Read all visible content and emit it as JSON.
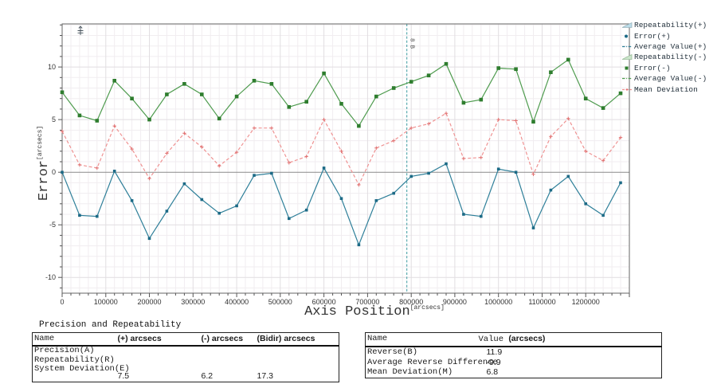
{
  "chart_data": {
    "type": "line",
    "title": "",
    "xlabel": "Axis Position",
    "xlabel_unit": "[arcsecs]",
    "ylabel": "Error",
    "ylabel_unit": "[arcsecs]",
    "xlim": [
      0,
      1300000
    ],
    "ylim": [
      -11.5,
      14.1
    ],
    "grid": true,
    "legend_position": "right",
    "x_tick_values": [
      0,
      100000,
      200000,
      300000,
      400000,
      500000,
      600000,
      700000,
      800000,
      900000,
      1000000,
      1100000,
      1200000
    ],
    "x_tick_labels": [
      "0",
      "100000",
      "200000",
      "300000",
      "400000",
      "500000",
      "600000",
      "700000",
      "800000",
      "900000",
      "1000000",
      "1100000",
      "1200000"
    ],
    "x_minor_step": 20000,
    "y_tick_values": [
      -10,
      -5,
      0,
      5,
      10
    ],
    "y_tick_labels": [
      "-10",
      "-5",
      "0",
      "5",
      "10"
    ],
    "y_minor_step": 1,
    "ref_line": {
      "x": 790000,
      "label": "8B"
    },
    "x": [
      0,
      40000,
      80000,
      120000,
      160000,
      200000,
      240000,
      280000,
      320000,
      360000,
      400000,
      440000,
      480000,
      520000,
      560000,
      600000,
      640000,
      680000,
      720000,
      760000,
      800000,
      840000,
      880000,
      920000,
      960000,
      1000000,
      1040000,
      1080000,
      1120000,
      1160000,
      1200000,
      1240000,
      1280000
    ],
    "series": [
      {
        "name": "Average Value(-)",
        "marker": "square",
        "line": "solid",
        "values": [
          7.6,
          5.4,
          4.9,
          8.7,
          7.0,
          5.0,
          7.4,
          8.4,
          7.4,
          5.1,
          7.2,
          8.7,
          8.4,
          6.2,
          6.7,
          9.4,
          6.5,
          4.4,
          7.2,
          8.0,
          8.6,
          9.2,
          10.3,
          6.6,
          6.9,
          9.9,
          9.8,
          4.8,
          9.5,
          10.7,
          7.0,
          6.1,
          7.5
        ]
      },
      {
        "name": "Mean Deviation",
        "marker": "plus",
        "line": "dashed",
        "values": [
          3.9,
          0.7,
          0.4,
          4.4,
          2.2,
          -0.6,
          1.8,
          3.7,
          2.4,
          0.6,
          1.9,
          4.2,
          4.2,
          0.9,
          1.5,
          5.0,
          2.0,
          -1.2,
          2.3,
          3.0,
          4.2,
          4.6,
          5.6,
          1.3,
          1.4,
          5.0,
          4.9,
          -0.2,
          3.4,
          5.1,
          2.0,
          1.1,
          3.3
        ]
      },
      {
        "name": "Average Value(+)",
        "marker": "square",
        "line": "solid",
        "values": [
          0.0,
          -4.1,
          -4.2,
          0.1,
          -2.7,
          -6.3,
          -3.7,
          -1.1,
          -2.6,
          -3.9,
          -3.2,
          -0.3,
          -0.1,
          -4.4,
          -3.6,
          0.4,
          -2.5,
          -6.9,
          -2.7,
          -2.0,
          -0.4,
          -0.1,
          0.8,
          -4.0,
          -4.2,
          0.3,
          0.0,
          -5.3,
          -1.7,
          -0.4,
          -3.0,
          -4.1,
          -1.0
        ]
      }
    ]
  },
  "legend": {
    "items": [
      {
        "label": "Repeatability(+)",
        "icon": "repeatability-plus-icon",
        "marker": "wedge_cyan"
      },
      {
        "label": "Error(+)",
        "icon": "error-plus-icon",
        "marker": "dot_blue"
      },
      {
        "label": "Average Value(+)",
        "icon": "average-value-plus-icon",
        "marker": "dashdot_teal"
      },
      {
        "label": "Repeatability(-)",
        "icon": "repeatability-minus-icon",
        "marker": "wedge_green"
      },
      {
        "label": "Error(-)",
        "icon": "error-minus-icon",
        "marker": "square_green"
      },
      {
        "label": "Average Value(-)",
        "icon": "average-value-minus-icon",
        "marker": "dashdot_green"
      },
      {
        "label": "Mean Deviation",
        "icon": "mean-deviation-icon",
        "marker": "dash_red"
      }
    ]
  },
  "tables": {
    "left": {
      "title": "Precision and Repeatability",
      "headers": [
        "Name",
        "(+) arcsecs",
        "(-) arcsecs",
        "(Bidir) arcsecs"
      ],
      "rows": [
        [
          "Precision(A)",
          "",
          "",
          ""
        ],
        [
          "Repeatability(R)",
          "",
          "",
          ""
        ],
        [
          "System Deviation(E)",
          "7.5",
          "6.2",
          "17.3"
        ]
      ]
    },
    "right": {
      "headers": [
        "Name",
        "Value (arcsecs)"
      ],
      "value_header_prefix": "Value ",
      "value_header_suffix": "(arcsecs)",
      "rows": [
        [
          "Reverse(B)",
          "11.9"
        ],
        [
          "Average Reverse Difference",
          "-9.9"
        ],
        [
          "Mean Deviation(M)",
          "6.8"
        ]
      ]
    }
  },
  "colors": {
    "series_pos": "#2e7f99",
    "series_pos_marker": "#1c6a86",
    "series_neg": "#4e9b4e",
    "series_neg_marker": "#2e7d2e",
    "mean_dev": "#ef9292",
    "mean_dev_marker": "#e07070",
    "ref_line": "#3a9aa0",
    "grid_minor": "#f1edf0",
    "grid_major": "#e1dee1",
    "zero_line": "#8a8a8a",
    "plot_border": "#666666",
    "legend_wedge_cyan": "#bcdde9",
    "legend_wedge_green": "#cbe5cb",
    "tick_text": "#333333"
  }
}
